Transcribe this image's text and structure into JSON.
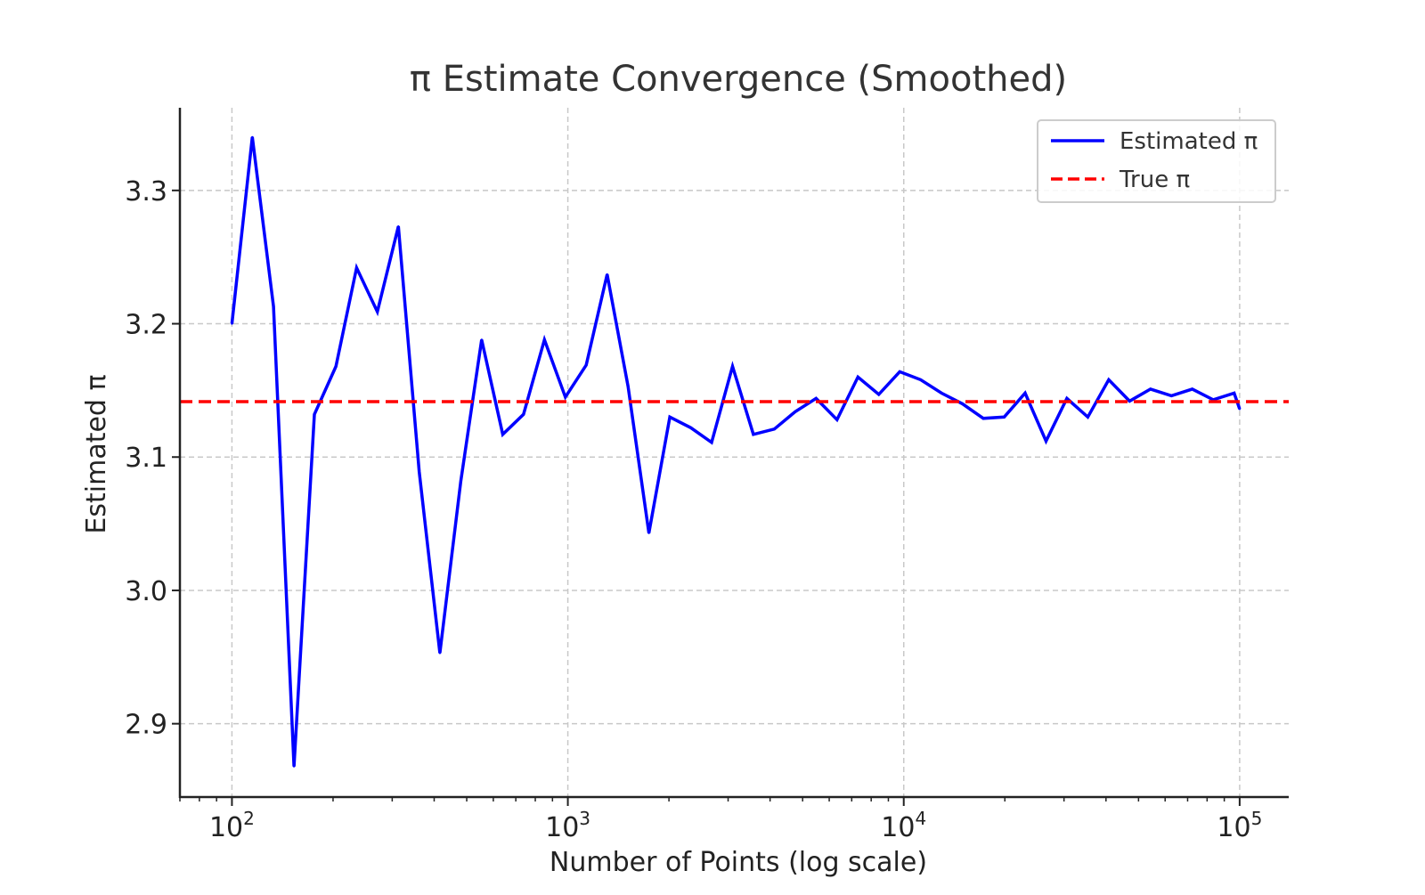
{
  "chart_data": {
    "type": "line",
    "title": "π Estimate Convergence (Smoothed)",
    "xlabel": "Number of Points (log scale)",
    "ylabel": "Estimated π",
    "x_scale": "log",
    "xlim": [
      70,
      140000
    ],
    "ylim": [
      2.845,
      3.362
    ],
    "grid": true,
    "legend_position": "top-right",
    "x_ticks": [
      {
        "value": 100,
        "base": "10",
        "exp": "2"
      },
      {
        "value": 1000,
        "base": "10",
        "exp": "3"
      },
      {
        "value": 10000,
        "base": "10",
        "exp": "4"
      },
      {
        "value": 100000,
        "base": "10",
        "exp": "5"
      }
    ],
    "y_ticks": [
      {
        "value": 2.9,
        "label": "2.9"
      },
      {
        "value": 3.0,
        "label": "3.0"
      },
      {
        "value": 3.1,
        "label": "3.1"
      },
      {
        "value": 3.2,
        "label": "3.2"
      },
      {
        "value": 3.3,
        "label": "3.3"
      }
    ],
    "series": [
      {
        "name": "Estimated π",
        "color": "#0000ff",
        "style": "solid",
        "x": [
          100,
          115,
          133,
          153,
          176,
          204,
          235,
          271,
          313,
          361,
          416,
          480,
          554,
          640,
          738,
          852,
          983,
          1134,
          1309,
          1511,
          1743,
          2012,
          2322,
          2679,
          3092,
          3568,
          4118,
          4752,
          5484,
          6329,
          7304,
          8429,
          9727,
          11225,
          12954,
          14950,
          17252,
          19910,
          22977,
          26516,
          30601,
          35314,
          40753,
          47031,
          54275,
          62636,
          72283,
          83417,
          96266,
          100000
        ],
        "y": [
          3.2,
          3.34,
          3.213,
          2.868,
          3.132,
          3.168,
          3.242,
          3.209,
          3.273,
          3.089,
          2.953,
          3.082,
          3.188,
          3.117,
          3.132,
          3.188,
          3.145,
          3.169,
          3.237,
          3.153,
          3.043,
          3.13,
          3.122,
          3.111,
          3.168,
          3.117,
          3.121,
          3.134,
          3.144,
          3.128,
          3.16,
          3.147,
          3.164,
          3.158,
          3.148,
          3.14,
          3.129,
          3.13,
          3.148,
          3.112,
          3.144,
          3.13,
          3.158,
          3.142,
          3.151,
          3.146,
          3.151,
          3.143,
          3.148,
          3.136
        ]
      },
      {
        "name": "True π",
        "color": "#ff0000",
        "style": "dashed",
        "y_constant": 3.14159
      }
    ]
  }
}
